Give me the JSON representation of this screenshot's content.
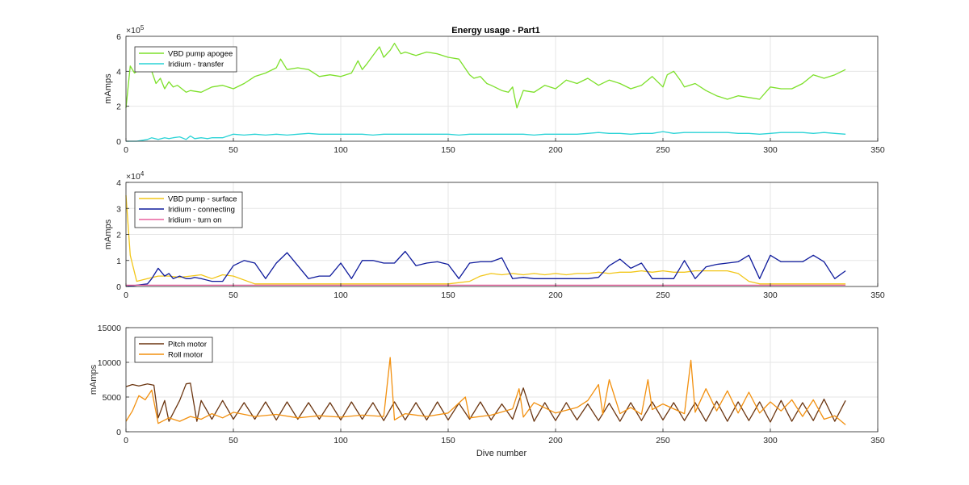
{
  "figure": {
    "title": "Energy usage - Part1",
    "xlabel": "Dive number"
  },
  "chart_data": [
    {
      "type": "line",
      "title": "Energy usage - Part1",
      "xlabel": "",
      "ylabel": "mAmps",
      "xlim": [
        0,
        350
      ],
      "ylim": [
        0,
        6
      ],
      "y_multiplier": "×10^5",
      "xticks": [
        0,
        50,
        100,
        150,
        200,
        250,
        300,
        350
      ],
      "yticks": [
        0,
        2,
        4,
        6
      ],
      "grid": true,
      "legend_position": "top-left",
      "series": [
        {
          "name": "VBD pump apogee",
          "color": "#7de02a",
          "x": [
            0,
            2,
            4,
            6,
            8,
            10,
            12,
            14,
            16,
            18,
            20,
            22,
            24,
            26,
            28,
            30,
            35,
            40,
            45,
            50,
            55,
            60,
            65,
            70,
            72,
            75,
            80,
            85,
            90,
            95,
            100,
            105,
            108,
            110,
            112,
            115,
            118,
            120,
            123,
            125,
            128,
            130,
            135,
            140,
            145,
            150,
            155,
            160,
            162,
            165,
            168,
            170,
            175,
            178,
            180,
            182,
            185,
            190,
            195,
            200,
            205,
            210,
            215,
            220,
            225,
            230,
            235,
            240,
            245,
            250,
            252,
            255,
            258,
            260,
            265,
            270,
            275,
            280,
            285,
            290,
            295,
            300,
            305,
            310,
            315,
            320,
            325,
            330,
            335
          ],
          "y": [
            1.9,
            4.3,
            3.9,
            4.1,
            4.2,
            4.3,
            4.0,
            3.3,
            3.6,
            3.0,
            3.4,
            3.1,
            3.2,
            3.0,
            2.8,
            2.9,
            2.8,
            3.1,
            3.2,
            3.0,
            3.3,
            3.7,
            3.9,
            4.2,
            4.7,
            4.1,
            4.2,
            4.1,
            3.7,
            3.8,
            3.7,
            3.9,
            4.6,
            4.1,
            4.4,
            4.9,
            5.4,
            4.8,
            5.2,
            5.6,
            5.0,
            5.1,
            4.9,
            5.1,
            5.0,
            4.8,
            4.7,
            3.8,
            3.6,
            3.7,
            3.3,
            3.2,
            2.9,
            2.8,
            3.1,
            1.9,
            2.9,
            2.8,
            3.2,
            3.0,
            3.5,
            3.3,
            3.6,
            3.2,
            3.5,
            3.3,
            3.0,
            3.2,
            3.7,
            3.1,
            3.8,
            4.0,
            3.5,
            3.1,
            3.3,
            2.9,
            2.6,
            2.4,
            2.6,
            2.5,
            2.4,
            3.1,
            3.0,
            3.0,
            3.3,
            3.8,
            3.6,
            3.8,
            4.1
          ]
        },
        {
          "name": "Iridium - transfer",
          "color": "#2ad3d6",
          "x": [
            0,
            5,
            10,
            12,
            15,
            18,
            20,
            22,
            25,
            28,
            30,
            32,
            35,
            38,
            40,
            45,
            50,
            55,
            60,
            65,
            70,
            75,
            80,
            85,
            90,
            95,
            100,
            105,
            110,
            115,
            120,
            125,
            130,
            135,
            140,
            145,
            150,
            155,
            160,
            165,
            170,
            175,
            180,
            185,
            190,
            195,
            200,
            205,
            210,
            215,
            220,
            225,
            230,
            235,
            240,
            245,
            250,
            255,
            260,
            265,
            270,
            275,
            280,
            285,
            290,
            295,
            300,
            305,
            310,
            315,
            320,
            325,
            330,
            335
          ],
          "y": [
            0.0,
            0.0,
            0.1,
            0.2,
            0.1,
            0.2,
            0.15,
            0.2,
            0.25,
            0.1,
            0.3,
            0.15,
            0.2,
            0.15,
            0.2,
            0.2,
            0.4,
            0.35,
            0.4,
            0.35,
            0.4,
            0.35,
            0.4,
            0.45,
            0.4,
            0.4,
            0.4,
            0.4,
            0.4,
            0.35,
            0.4,
            0.4,
            0.4,
            0.4,
            0.4,
            0.4,
            0.4,
            0.35,
            0.4,
            0.4,
            0.4,
            0.4,
            0.4,
            0.4,
            0.35,
            0.4,
            0.4,
            0.4,
            0.4,
            0.45,
            0.5,
            0.45,
            0.45,
            0.4,
            0.45,
            0.45,
            0.55,
            0.45,
            0.5,
            0.5,
            0.5,
            0.5,
            0.5,
            0.45,
            0.45,
            0.4,
            0.45,
            0.5,
            0.5,
            0.5,
            0.45,
            0.5,
            0.45,
            0.4
          ]
        }
      ]
    },
    {
      "type": "line",
      "title": "",
      "xlabel": "",
      "ylabel": "mAmps",
      "xlim": [
        0,
        350
      ],
      "ylim": [
        0,
        4
      ],
      "y_multiplier": "×10^4",
      "xticks": [
        0,
        50,
        100,
        150,
        200,
        250,
        300,
        350
      ],
      "yticks": [
        0,
        1,
        2,
        3,
        4
      ],
      "grid": true,
      "legend_position": "top-left",
      "series": [
        {
          "name": "VBD pump - surface",
          "color": "#f2c618",
          "x": [
            0,
            2,
            5,
            10,
            15,
            20,
            25,
            30,
            35,
            40,
            45,
            50,
            60,
            70,
            80,
            90,
            100,
            110,
            120,
            130,
            140,
            150,
            160,
            165,
            170,
            175,
            180,
            185,
            190,
            195,
            200,
            205,
            210,
            215,
            220,
            225,
            230,
            235,
            240,
            245,
            250,
            255,
            260,
            265,
            270,
            275,
            280,
            285,
            290,
            295,
            300,
            310,
            320,
            330,
            335
          ],
          "y": [
            3.5,
            1.2,
            0.2,
            0.3,
            0.4,
            0.4,
            0.35,
            0.4,
            0.45,
            0.3,
            0.45,
            0.4,
            0.1,
            0.1,
            0.1,
            0.1,
            0.1,
            0.1,
            0.1,
            0.1,
            0.1,
            0.1,
            0.2,
            0.4,
            0.5,
            0.45,
            0.5,
            0.45,
            0.5,
            0.45,
            0.5,
            0.45,
            0.5,
            0.5,
            0.55,
            0.5,
            0.55,
            0.55,
            0.6,
            0.55,
            0.6,
            0.55,
            0.55,
            0.6,
            0.6,
            0.6,
            0.6,
            0.5,
            0.2,
            0.1,
            0.1,
            0.1,
            0.1,
            0.1,
            0.1
          ]
        },
        {
          "name": "Iridium - connecting",
          "color": "#0f1b9c",
          "x": [
            0,
            10,
            12,
            15,
            18,
            20,
            22,
            25,
            28,
            30,
            32,
            35,
            40,
            45,
            50,
            55,
            60,
            65,
            70,
            75,
            80,
            85,
            90,
            95,
            100,
            105,
            110,
            115,
            120,
            125,
            130,
            135,
            140,
            145,
            150,
            155,
            160,
            165,
            170,
            175,
            180,
            185,
            190,
            195,
            200,
            205,
            210,
            215,
            220,
            225,
            230,
            235,
            240,
            245,
            250,
            255,
            260,
            265,
            270,
            275,
            280,
            285,
            290,
            295,
            300,
            305,
            310,
            315,
            320,
            325,
            330,
            335
          ],
          "y": [
            0.0,
            0.1,
            0.3,
            0.7,
            0.4,
            0.5,
            0.3,
            0.4,
            0.3,
            0.3,
            0.35,
            0.3,
            0.2,
            0.2,
            0.8,
            1.0,
            0.9,
            0.3,
            0.9,
            1.3,
            0.8,
            0.3,
            0.4,
            0.4,
            0.9,
            0.3,
            1.0,
            1.0,
            0.9,
            0.9,
            1.35,
            0.8,
            0.9,
            0.95,
            0.85,
            0.3,
            0.9,
            0.95,
            0.95,
            1.1,
            0.3,
            0.35,
            0.3,
            0.3,
            0.3,
            0.3,
            0.3,
            0.3,
            0.35,
            0.8,
            1.05,
            0.7,
            0.9,
            0.3,
            0.3,
            0.3,
            1.0,
            0.3,
            0.75,
            0.85,
            0.9,
            0.95,
            1.2,
            0.3,
            1.2,
            0.95,
            0.95,
            0.95,
            1.2,
            0.95,
            0.3,
            0.6
          ]
        },
        {
          "name": "Iridium - turn on",
          "color": "#e8609e",
          "x": [
            0,
            50,
            100,
            150,
            200,
            250,
            300,
            335
          ],
          "y": [
            0.05,
            0.05,
            0.05,
            0.05,
            0.05,
            0.05,
            0.05,
            0.05
          ]
        }
      ]
    },
    {
      "type": "line",
      "title": "",
      "xlabel": "Dive number",
      "ylabel": "mAmps",
      "xlim": [
        0,
        350
      ],
      "ylim": [
        0,
        15000
      ],
      "xticks": [
        0,
        50,
        100,
        150,
        200,
        250,
        300,
        350
      ],
      "yticks": [
        0,
        5000,
        10000,
        15000
      ],
      "grid": true,
      "legend_position": "top-left",
      "series": [
        {
          "name": "Pitch motor",
          "color": "#6b3510",
          "x": [
            0,
            3,
            6,
            10,
            13,
            15,
            18,
            20,
            25,
            28,
            30,
            33,
            35,
            40,
            45,
            50,
            55,
            60,
            65,
            70,
            75,
            80,
            85,
            90,
            95,
            100,
            105,
            110,
            115,
            120,
            125,
            130,
            135,
            140,
            145,
            150,
            155,
            160,
            165,
            170,
            175,
            180,
            185,
            190,
            195,
            200,
            205,
            210,
            215,
            220,
            225,
            230,
            235,
            240,
            245,
            250,
            255,
            260,
            265,
            270,
            275,
            280,
            285,
            290,
            295,
            300,
            305,
            310,
            315,
            320,
            325,
            330,
            335
          ],
          "y": [
            6500,
            6800,
            6600,
            6900,
            6700,
            2000,
            4500,
            1500,
            4500,
            6900,
            7000,
            1500,
            4500,
            1800,
            4500,
            1800,
            4200,
            1800,
            4300,
            1700,
            4300,
            1800,
            4200,
            1800,
            4200,
            1700,
            4300,
            1800,
            4200,
            1600,
            4300,
            1700,
            4200,
            1700,
            4300,
            1700,
            4100,
            1800,
            4300,
            1700,
            4000,
            1800,
            6300,
            1500,
            4200,
            1600,
            4200,
            1700,
            4000,
            1600,
            4100,
            1500,
            4200,
            1600,
            4300,
            1700,
            4200,
            1600,
            4200,
            1500,
            4400,
            1500,
            4300,
            1600,
            4300,
            1400,
            4500,
            1500,
            4200,
            1600,
            4700,
            1500,
            4500
          ]
        },
        {
          "name": "Roll motor",
          "color": "#f2900f",
          "x": [
            0,
            3,
            6,
            9,
            12,
            15,
            20,
            25,
            30,
            35,
            40,
            45,
            50,
            60,
            70,
            80,
            90,
            100,
            110,
            120,
            123,
            125,
            130,
            140,
            150,
            158,
            160,
            170,
            180,
            183,
            185,
            190,
            200,
            210,
            215,
            220,
            222,
            225,
            230,
            235,
            240,
            243,
            245,
            250,
            255,
            260,
            263,
            265,
            270,
            275,
            280,
            285,
            290,
            295,
            300,
            305,
            310,
            315,
            320,
            325,
            330,
            335
          ],
          "y": [
            1500,
            3000,
            5200,
            4600,
            6000,
            1200,
            2000,
            1500,
            2200,
            1800,
            2600,
            2000,
            2800,
            2200,
            2500,
            2000,
            2300,
            2100,
            2400,
            2200,
            10700,
            1700,
            2600,
            2200,
            2700,
            5000,
            2000,
            2400,
            3300,
            6200,
            2100,
            4200,
            2700,
            3500,
            4500,
            6800,
            2500,
            7500,
            2600,
            3500,
            2500,
            7500,
            3200,
            4000,
            3300,
            2600,
            10300,
            2800,
            6200,
            3000,
            5900,
            2700,
            5700,
            2700,
            4300,
            3000,
            4600,
            2200,
            4600,
            1800,
            2300,
            1000
          ]
        }
      ]
    }
  ]
}
